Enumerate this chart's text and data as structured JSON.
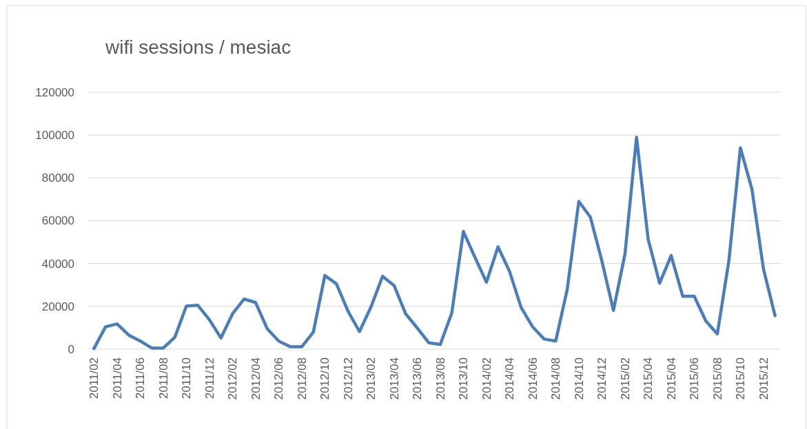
{
  "chart_data": {
    "type": "line",
    "title": "wifi sessions / mesiac",
    "categories": [
      "2011/02",
      null,
      "2011/04",
      null,
      "2011/06",
      null,
      "2011/08",
      null,
      "2011/10",
      null,
      "2011/12",
      null,
      "2012/02",
      null,
      "2012/04",
      null,
      "2012/06",
      null,
      "2012/08",
      null,
      "2012/10",
      null,
      "2012/12",
      null,
      "2013/02",
      null,
      "2013/04",
      null,
      "2013/06",
      null,
      "2013/08",
      null,
      "2013/10",
      null,
      "2014/02",
      null,
      "2014/04",
      null,
      "2014/06",
      null,
      "2014/08",
      null,
      "2014/10",
      null,
      "2014/12",
      null,
      "2015/02",
      null,
      "2015/04",
      null,
      "2015/04",
      null,
      "2015/06",
      null,
      "2015/08",
      null,
      "2015/10",
      null,
      "2015/12",
      null
    ],
    "series": [
      {
        "color": "#4a7ebb",
        "values": [
          300,
          10400,
          11800,
          6600,
          3800,
          500,
          500,
          5500,
          20100,
          20500,
          13700,
          5200,
          16500,
          23400,
          21800,
          9600,
          3800,
          1100,
          1100,
          7900,
          34400,
          30500,
          17800,
          8200,
          19800,
          34000,
          29700,
          16500,
          9900,
          3000,
          2200,
          17000,
          55000,
          42900,
          31300,
          47800,
          36300,
          19500,
          10400,
          4700,
          3800,
          28000,
          69000,
          61700,
          41200,
          18100,
          44500,
          99000,
          51600,
          30800,
          43700,
          24700,
          24700,
          13200,
          7100,
          41200,
          94000,
          74700,
          37400,
          15600
        ]
      }
    ],
    "ylim": [
      0,
      120000
    ],
    "yticks": [
      0,
      20000,
      40000,
      60000,
      80000,
      100000,
      120000
    ],
    "grid": "y",
    "marker": "none",
    "line_style": "solid"
  }
}
